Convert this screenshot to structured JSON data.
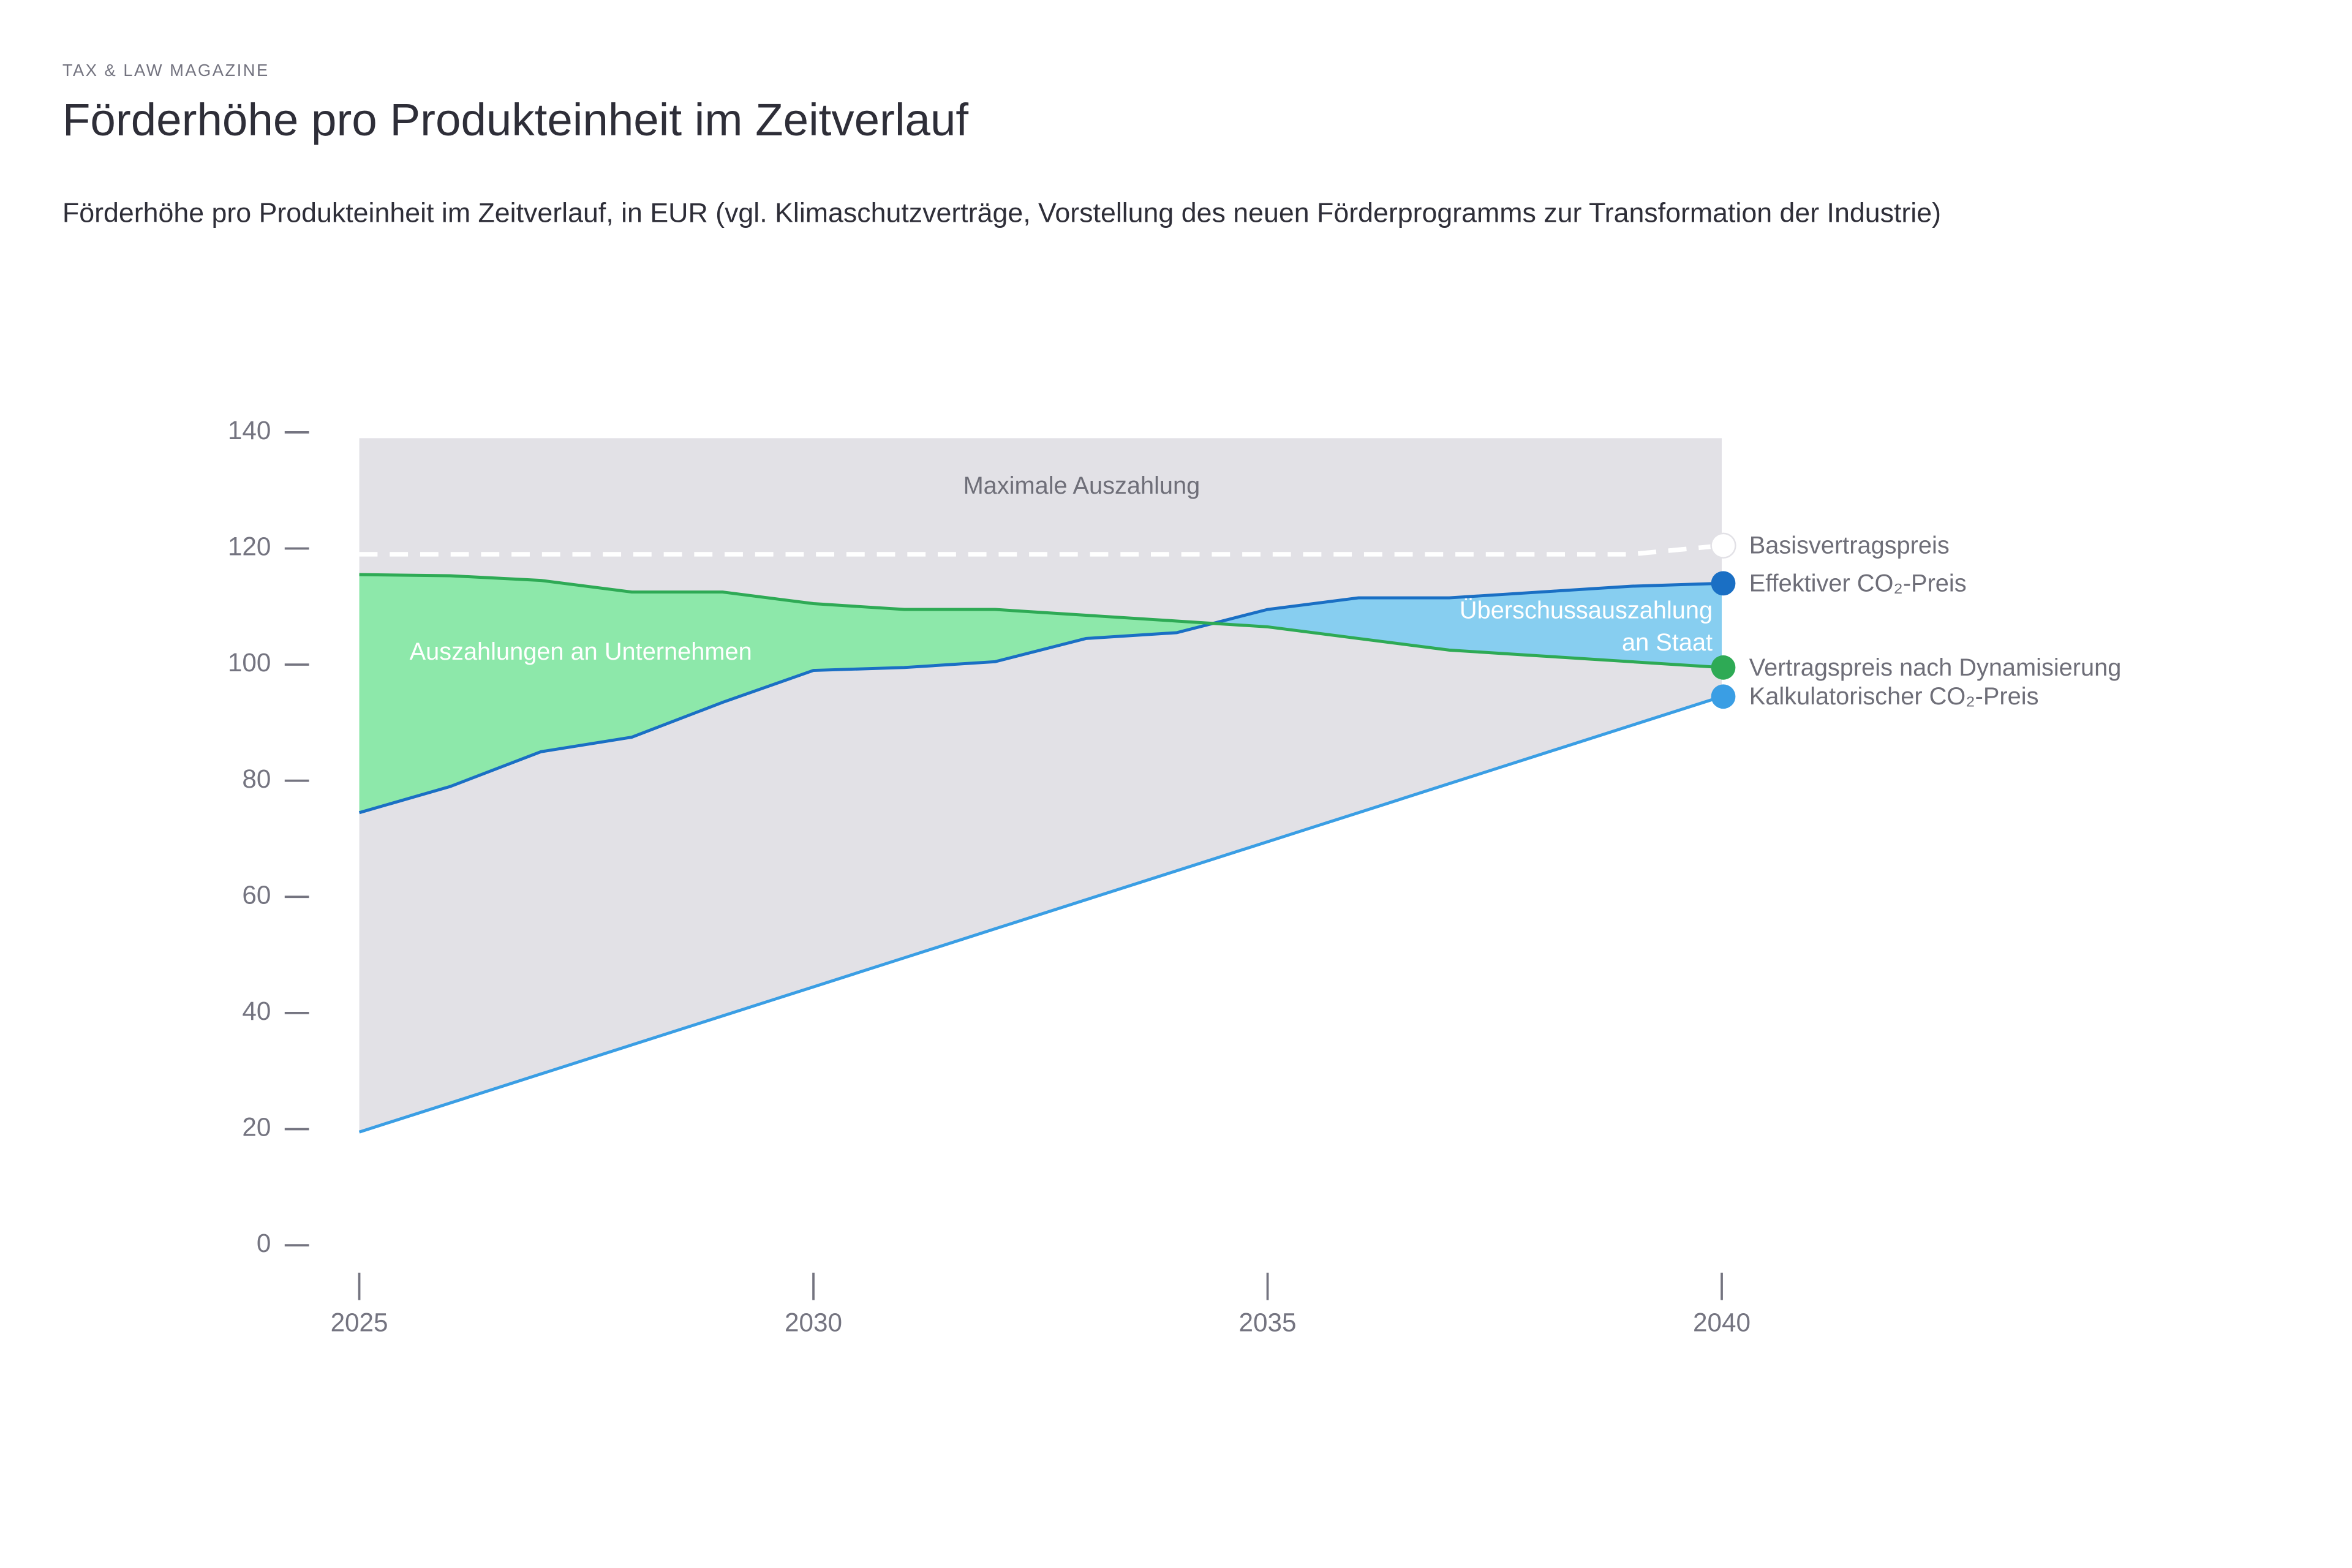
{
  "kicker": "TAX & LAW MAGAZINE",
  "chart_data": {
    "type": "line",
    "title": "Förderhöhe pro Produkteinheit im Zeitverlauf",
    "subtitle": "Förderhöhe pro Produkteinheit im Zeitverlauf, in EUR (vgl. Klimaschutzverträge, Vorstellung des neuen Förderprogramms zur Transformation der Industrie)",
    "x": [
      2025,
      2026,
      2027,
      2028,
      2029,
      2030,
      2031,
      2032,
      2033,
      2034,
      2035,
      2036,
      2037,
      2038,
      2039,
      2040
    ],
    "xlim": [
      2025,
      2040
    ],
    "xticks": [
      2025,
      2030,
      2035,
      2040
    ],
    "ylim": [
      0,
      140
    ],
    "yticks": [
      0,
      20,
      40,
      60,
      80,
      100,
      120,
      140
    ],
    "series": [
      {
        "name": "Basisvertragspreis",
        "color": "#ffffff",
        "dashed": true,
        "values": [
          119,
          119,
          119,
          119,
          119,
          119,
          119,
          119,
          119,
          119,
          119,
          119,
          119,
          119,
          119,
          120.5
        ]
      },
      {
        "name": "Effektiver CO₂-Preis",
        "color": "#1a6fc4",
        "values": [
          74.5,
          79,
          85,
          87.5,
          93.5,
          99,
          99.5,
          100.5,
          104.5,
          105.5,
          109.5,
          111.5,
          111.5,
          112.5,
          113.5,
          114
        ]
      },
      {
        "name": "Vertragspreis nach Dynamisierung",
        "color": "#2eaa55",
        "values": [
          115.5,
          115.3,
          114.5,
          112.5,
          112.5,
          110.5,
          109.5,
          109.5,
          108.5,
          107.5,
          106.5,
          104.5,
          102.5,
          101.5,
          100.5,
          99.5
        ]
      },
      {
        "name": "Kalkulatorischer CO₂-Preis",
        "color": "#3a9ee4",
        "values": [
          19.5,
          24.5,
          29.5,
          34.5,
          39.5,
          44.5,
          49.5,
          54.5,
          59.5,
          64.5,
          69.5,
          74.5,
          79.5,
          84.5,
          89.5,
          94.5
        ]
      }
    ],
    "max_payout": 139,
    "fills": {
      "max": "#e2e1e6",
      "company": "#8de8aa",
      "state": "#87cef0"
    },
    "annotations": {
      "max": "Maximale Auszahlung",
      "company": "Auszahlungen an Unternehmen",
      "state": [
        "Überschussauszahlung",
        "an Staat"
      ]
    }
  }
}
